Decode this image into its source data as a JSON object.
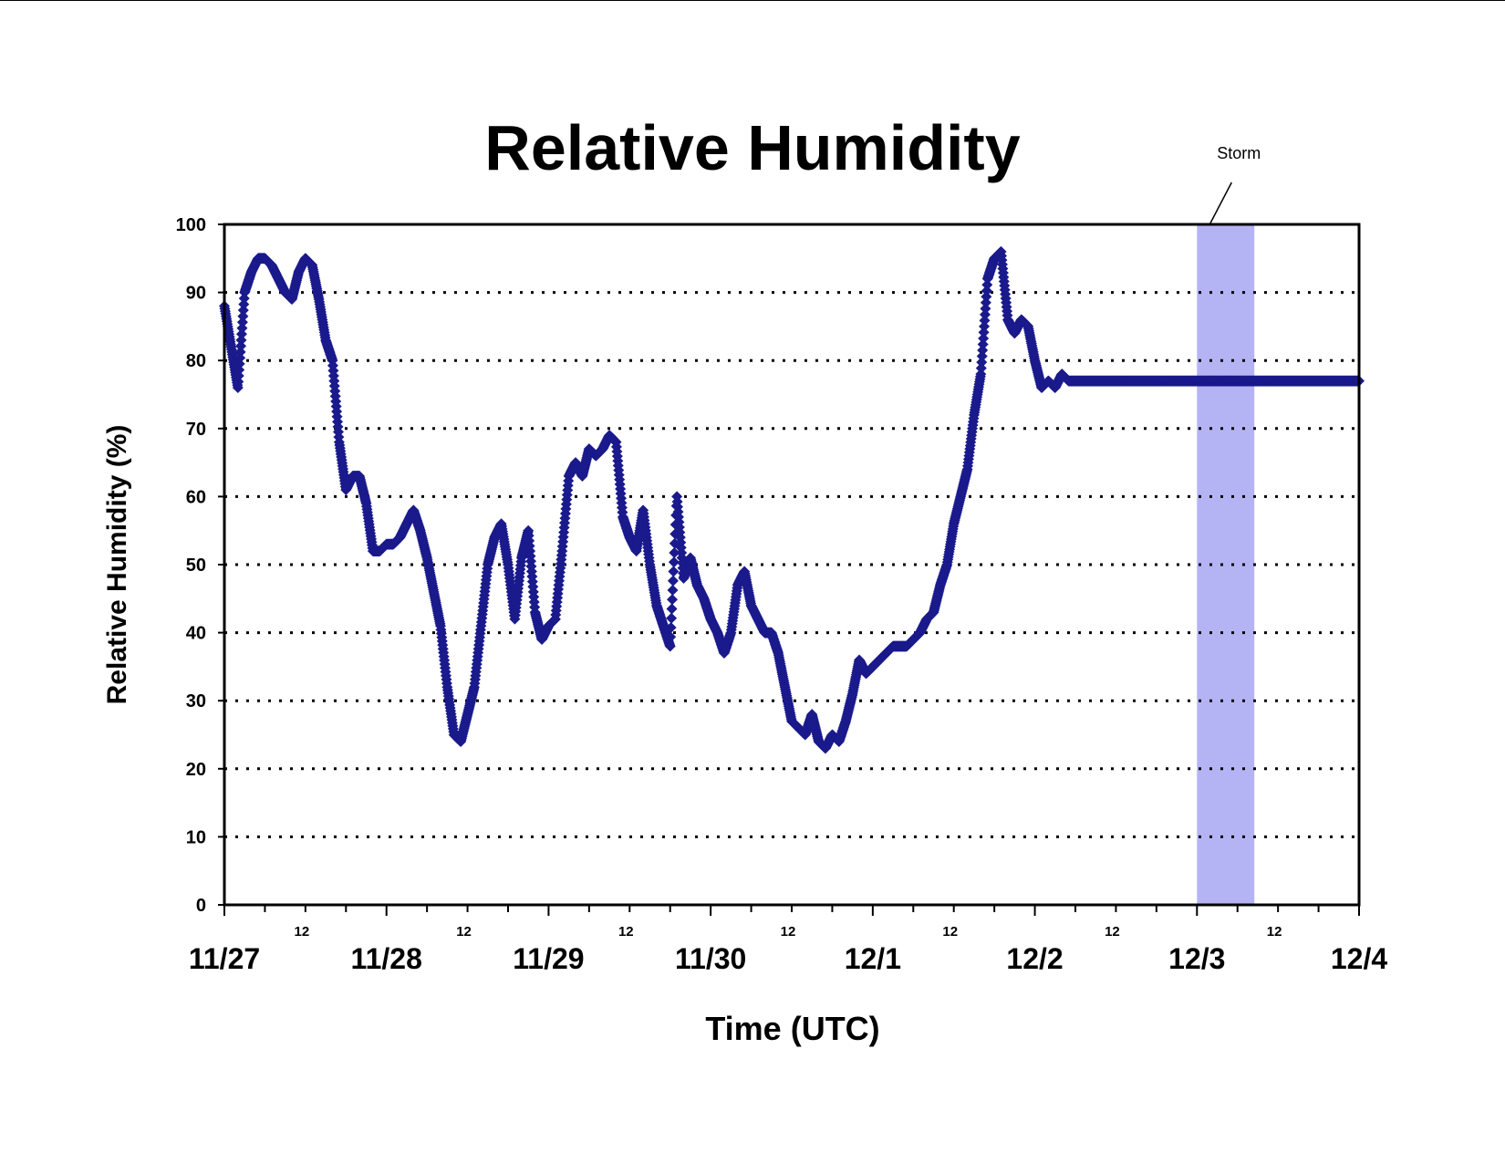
{
  "chart_data": {
    "type": "scatter",
    "title": "Relative Humidity",
    "xlabel": "Time (UTC)",
    "ylabel": "Relative Humidity (%)",
    "x_unit": "date (UTC)",
    "xlim": [
      "11/27 00:00",
      "12/4 00:00"
    ],
    "ylim": [
      0,
      100
    ],
    "y_ticks": [
      0,
      10,
      20,
      30,
      40,
      50,
      60,
      70,
      80,
      90,
      100
    ],
    "x_tick_labels": [
      "11/27",
      "11/28",
      "11/29",
      "11/30",
      "12/1",
      "12/2",
      "12/3",
      "12/4"
    ],
    "x_minor_label": "12",
    "grid": "horizontal dotted",
    "legend": "none",
    "colors": {
      "series": "#1a1a8c",
      "storm_band": "#b4b4f5",
      "grid": "#000000"
    },
    "annotation": {
      "text": "Storm",
      "x_start": "12/3 00:00",
      "x_end": "12/3 08:30"
    },
    "series": [
      {
        "x": [
          "11/27 00:00",
          "11/27 01:00",
          "11/27 02:00",
          "11/27 03:00",
          "11/27 04:00",
          "11/27 05:00",
          "11/27 06:00",
          "11/27 07:00",
          "11/27 08:00",
          "11/27 09:00",
          "11/27 10:00",
          "11/27 11:00",
          "11/27 12:00",
          "11/27 13:00",
          "11/27 14:00",
          "11/27 15:00",
          "11/27 16:00",
          "11/27 17:00",
          "11/27 18:00",
          "11/27 19:00",
          "11/27 20:00",
          "11/27 21:00",
          "11/27 22:00",
          "11/27 23:00",
          "11/28 00:00",
          "11/28 01:00",
          "11/28 02:00",
          "11/28 03:00",
          "11/28 04:00",
          "11/28 05:00",
          "11/28 06:00",
          "11/28 07:00",
          "11/28 08:00",
          "11/28 09:00",
          "11/28 10:00",
          "11/28 11:00",
          "11/28 12:00",
          "11/28 13:00",
          "11/28 14:00",
          "11/28 15:00",
          "11/28 16:00",
          "11/28 17:00",
          "11/28 18:00",
          "11/28 19:00",
          "11/28 20:00",
          "11/28 21:00",
          "11/28 22:00",
          "11/28 23:00",
          "11/29 00:00",
          "11/29 01:00",
          "11/29 02:00",
          "11/29 03:00",
          "11/29 04:00",
          "11/29 05:00",
          "11/29 06:00",
          "11/29 07:00",
          "11/29 08:00",
          "11/29 09:00",
          "11/29 10:00",
          "11/29 11:00",
          "11/29 12:00",
          "11/29 13:00",
          "11/29 14:00",
          "11/29 15:00",
          "11/29 16:00",
          "11/29 17:00",
          "11/29 18:00",
          "11/29 19:00",
          "11/29 20:00",
          "11/29 21:00",
          "11/29 22:00",
          "11/29 23:00",
          "11/30 00:00",
          "11/30 01:00",
          "11/30 02:00",
          "11/30 03:00",
          "11/30 04:00",
          "11/30 05:00",
          "11/30 06:00",
          "11/30 07:00",
          "11/30 08:00",
          "11/30 09:00",
          "11/30 10:00",
          "11/30 11:00",
          "11/30 12:00",
          "11/30 13:00",
          "11/30 14:00",
          "11/30 15:00",
          "11/30 16:00",
          "11/30 17:00",
          "11/30 18:00",
          "11/30 19:00",
          "11/30 20:00",
          "11/30 21:00",
          "11/30 22:00",
          "11/30 23:00",
          "12/1 00:00",
          "12/1 01:00",
          "12/1 02:00",
          "12/1 03:00",
          "12/1 04:00",
          "12/1 05:00",
          "12/1 06:00",
          "12/1 07:00",
          "12/1 08:00",
          "12/1 09:00",
          "12/1 10:00",
          "12/1 11:00",
          "12/1 12:00",
          "12/1 13:00",
          "12/1 14:00",
          "12/1 15:00",
          "12/1 16:00",
          "12/1 17:00",
          "12/1 18:00",
          "12/1 19:00",
          "12/1 20:00",
          "12/1 21:00",
          "12/1 22:00",
          "12/1 23:00",
          "12/2 00:00",
          "12/2 01:00",
          "12/2 02:00",
          "12/2 03:00",
          "12/2 04:00",
          "12/2 05:00",
          "12/2 06:00",
          "12/2 07:00",
          "12/2 08:00",
          "12/2 09:00",
          "12/2 10:00",
          "12/2 11:00",
          "12/2 12:00",
          "12/2 13:00",
          "12/2 14:00",
          "12/2 15:00",
          "12/2 16:00",
          "12/2 17:00",
          "12/2 18:00",
          "12/2 19:00",
          "12/2 20:00",
          "12/2 21:00",
          "12/2 22:00",
          "12/2 23:00",
          "12/3 00:00",
          "12/3 01:00",
          "12/3 02:00",
          "12/3 03:00",
          "12/3 04:00",
          "12/3 05:00",
          "12/3 06:00",
          "12/3 07:00",
          "12/3 08:00",
          "12/3 09:00",
          "12/3 10:00",
          "12/3 11:00",
          "12/3 12:00",
          "12/3 13:00",
          "12/3 14:00",
          "12/3 15:00",
          "12/3 16:00",
          "12/3 17:00",
          "12/3 18:00",
          "12/3 19:00",
          "12/3 20:00",
          "12/3 21:00",
          "12/3 22:00",
          "12/3 23:00",
          "12/4 00:00"
        ],
        "y": [
          88,
          82,
          76,
          90,
          93,
          95,
          95,
          94,
          92,
          90,
          89,
          93,
          95,
          94,
          89,
          83,
          80,
          68,
          61,
          63,
          63,
          59,
          52,
          52,
          53,
          53,
          54,
          56,
          58,
          55,
          51,
          46,
          41,
          32,
          25,
          24,
          28,
          32,
          41,
          50,
          54,
          56,
          50,
          42,
          51,
          55,
          43,
          39,
          41,
          42,
          52,
          63,
          65,
          63,
          67,
          66,
          67,
          69,
          68,
          57,
          54,
          52,
          58,
          50,
          44,
          41,
          38,
          60,
          48,
          51,
          47,
          45,
          42,
          40,
          37,
          40,
          47,
          49,
          44,
          42,
          40,
          40,
          37,
          32,
          27,
          26,
          25,
          28,
          24,
          23,
          25,
          24,
          27,
          31,
          36,
          34,
          35,
          36,
          37,
          38,
          38,
          38,
          39,
          40,
          42,
          43,
          47,
          50,
          56,
          60,
          64,
          72,
          78,
          92,
          95,
          96,
          86,
          84,
          86,
          85,
          80,
          76,
          77,
          76,
          78,
          77,
          77,
          77,
          77,
          77,
          77,
          77,
          77,
          77,
          77,
          77,
          77,
          77,
          77,
          77,
          77,
          77,
          77,
          77,
          77,
          77,
          77,
          77,
          77,
          77,
          77,
          77,
          77,
          77,
          77,
          77,
          77,
          77,
          77,
          77,
          77,
          77,
          77,
          77,
          77,
          77,
          77,
          77,
          77
        ]
      }
    ]
  }
}
